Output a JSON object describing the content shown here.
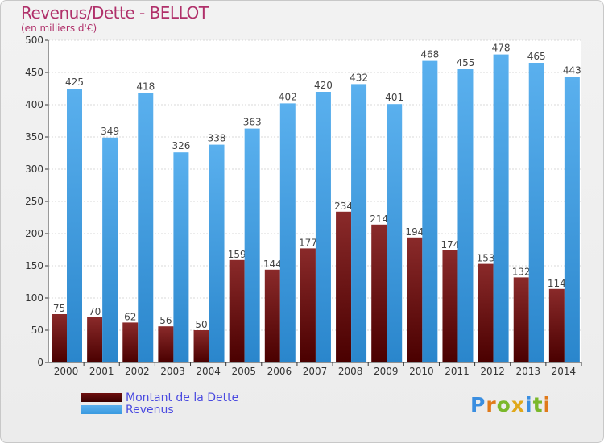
{
  "header": {
    "title": "Revenus/Dette - BELLOT",
    "subtitle": "(en milliers d'€)"
  },
  "colors": {
    "dette": "#7a1a1a",
    "revenus": "#3a9ae0",
    "title": "#b0306a",
    "legend_text": "#4a4ae0"
  },
  "legend": [
    {
      "label": "Montant de la Dette",
      "color": "#6e0f0f"
    },
    {
      "label": "Revenus",
      "color": "#3a9ae0"
    }
  ],
  "logo": {
    "text": "Proxiti",
    "letter_colors": [
      "#3a8ee0",
      "#e07a1a",
      "#7ab82a",
      "#e0a81a",
      "#3a8ee0",
      "#7ab82a",
      "#e07a1a"
    ]
  },
  "chart_data": {
    "type": "bar",
    "title": "Revenus/Dette - BELLOT",
    "subtitle": "(en milliers d'€)",
    "categories": [
      "2000",
      "2001",
      "2002",
      "2003",
      "2004",
      "2005",
      "2006",
      "2007",
      "2008",
      "2009",
      "2010",
      "2011",
      "2012",
      "2013",
      "2014"
    ],
    "series": [
      {
        "name": "Montant de la Dette",
        "values": [
          75,
          70,
          62,
          56,
          50,
          159,
          144,
          177,
          234,
          214,
          194,
          174,
          153,
          132,
          114
        ]
      },
      {
        "name": "Revenus",
        "values": [
          425,
          349,
          418,
          326,
          338,
          363,
          402,
          420,
          432,
          401,
          468,
          455,
          478,
          465,
          443
        ]
      }
    ],
    "ylim": [
      0,
      500
    ],
    "yticks": [
      0,
      50,
      100,
      150,
      200,
      250,
      300,
      350,
      400,
      450,
      500
    ],
    "grid": true,
    "legend_position": "bottom-left"
  }
}
